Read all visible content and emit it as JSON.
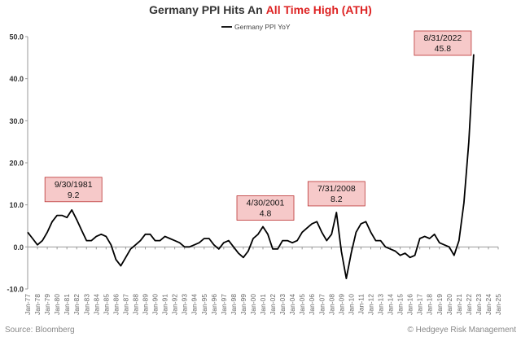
{
  "chart_data": {
    "type": "line",
    "title": "Germany PPI Hits An",
    "title_highlight": "All Time High (ATH)",
    "source": "Source: Bloomberg",
    "credit": "© Hedgeye Risk Management",
    "x": [
      "Jan-77",
      null,
      "Jan-78",
      null,
      "Jan-79",
      null,
      "Jan-80",
      null,
      "Jan-81",
      null,
      "Jan-82",
      null,
      "Jan-83",
      null,
      "Jan-84",
      null,
      "Jan-85",
      null,
      "Jan-86",
      null,
      "Jan-87",
      null,
      "Jan-88",
      null,
      "Jan-89",
      null,
      "Jan-90",
      null,
      "Jan-91",
      null,
      "Jan-92",
      null,
      "Jan-93",
      null,
      "Jan-94",
      null,
      "Jan-95",
      null,
      "Jan-96",
      null,
      "Jan-97",
      null,
      "Jan-98",
      null,
      "Jan-99",
      null,
      "Jan-00",
      null,
      "Jan-01",
      null,
      "Jan-02",
      null,
      "Jan-03",
      null,
      "Jan-04",
      null,
      "Jan-05",
      null,
      "Jan-06",
      null,
      "Jan-07",
      null,
      "Jan-08",
      null,
      "Jan-09",
      null,
      "Jan-10",
      null,
      "Jan-11",
      null,
      "Jan-12",
      null,
      "Jan-13",
      null,
      "Jan-14",
      null,
      "Jan-15",
      null,
      "Jan-16",
      null,
      "Jan-17",
      null,
      "Jan-18",
      null,
      "Jan-19",
      null,
      "Jan-20",
      null,
      "Jan-21",
      null,
      "Jan-22",
      null,
      "Jan-23",
      null,
      "Jan-24",
      null,
      "Jan-25"
    ],
    "series": [
      {
        "name": "Germany PPI YoY",
        "color": "#000000",
        "values": [
          3.5,
          2.0,
          0.5,
          1.5,
          3.5,
          6.0,
          7.5,
          7.5,
          7.0,
          8.8,
          6.5,
          4.0,
          1.5,
          1.5,
          2.5,
          3.0,
          2.5,
          0.5,
          -3.0,
          -4.5,
          -2.5,
          -0.5,
          0.5,
          1.5,
          3.0,
          3.0,
          1.5,
          1.5,
          2.5,
          2.0,
          1.5,
          1.0,
          0.0,
          0.0,
          0.5,
          1.0,
          2.0,
          2.0,
          0.5,
          -0.5,
          1.0,
          1.5,
          0.0,
          -1.5,
          -2.5,
          -1.0,
          2.0,
          3.0,
          4.8,
          3.0,
          -0.5,
          -0.5,
          1.5,
          1.5,
          1.0,
          1.5,
          3.5,
          4.5,
          5.5,
          6.0,
          3.5,
          1.5,
          3.0,
          8.2,
          -1.0,
          -7.5,
          -1.5,
          3.5,
          5.5,
          6.0,
          3.5,
          1.5,
          1.5,
          0.0,
          -0.5,
          -1.0,
          -2.0,
          -1.5,
          -2.5,
          -2.0,
          2.0,
          2.5,
          2.0,
          3.0,
          1.0,
          0.5,
          0.0,
          -2.0,
          1.5,
          10.5,
          25.0,
          45.8,
          null,
          null,
          null,
          null,
          null
        ]
      }
    ],
    "ylim": [
      -10,
      50
    ],
    "yticks": [
      {
        "value": -10,
        "label": "-10.0"
      },
      {
        "value": 0,
        "label": "0.0"
      },
      {
        "value": 10,
        "label": "10.0"
      },
      {
        "value": 20,
        "label": "20.0"
      },
      {
        "value": 30,
        "label": "30.0"
      },
      {
        "value": 40,
        "label": "40.0"
      },
      {
        "value": 50,
        "label": "50.0"
      }
    ],
    "legend": "top",
    "annotations": [
      {
        "date": "9/30/1981",
        "value": 9.2,
        "value_label": "9.2"
      },
      {
        "date": "4/30/2001",
        "value": 4.8,
        "value_label": "4.8"
      },
      {
        "date": "7/31/2008",
        "value": 8.2,
        "value_label": "8.2"
      },
      {
        "date": "8/31/2022",
        "value": 45.8,
        "value_label": "45.8"
      }
    ]
  }
}
